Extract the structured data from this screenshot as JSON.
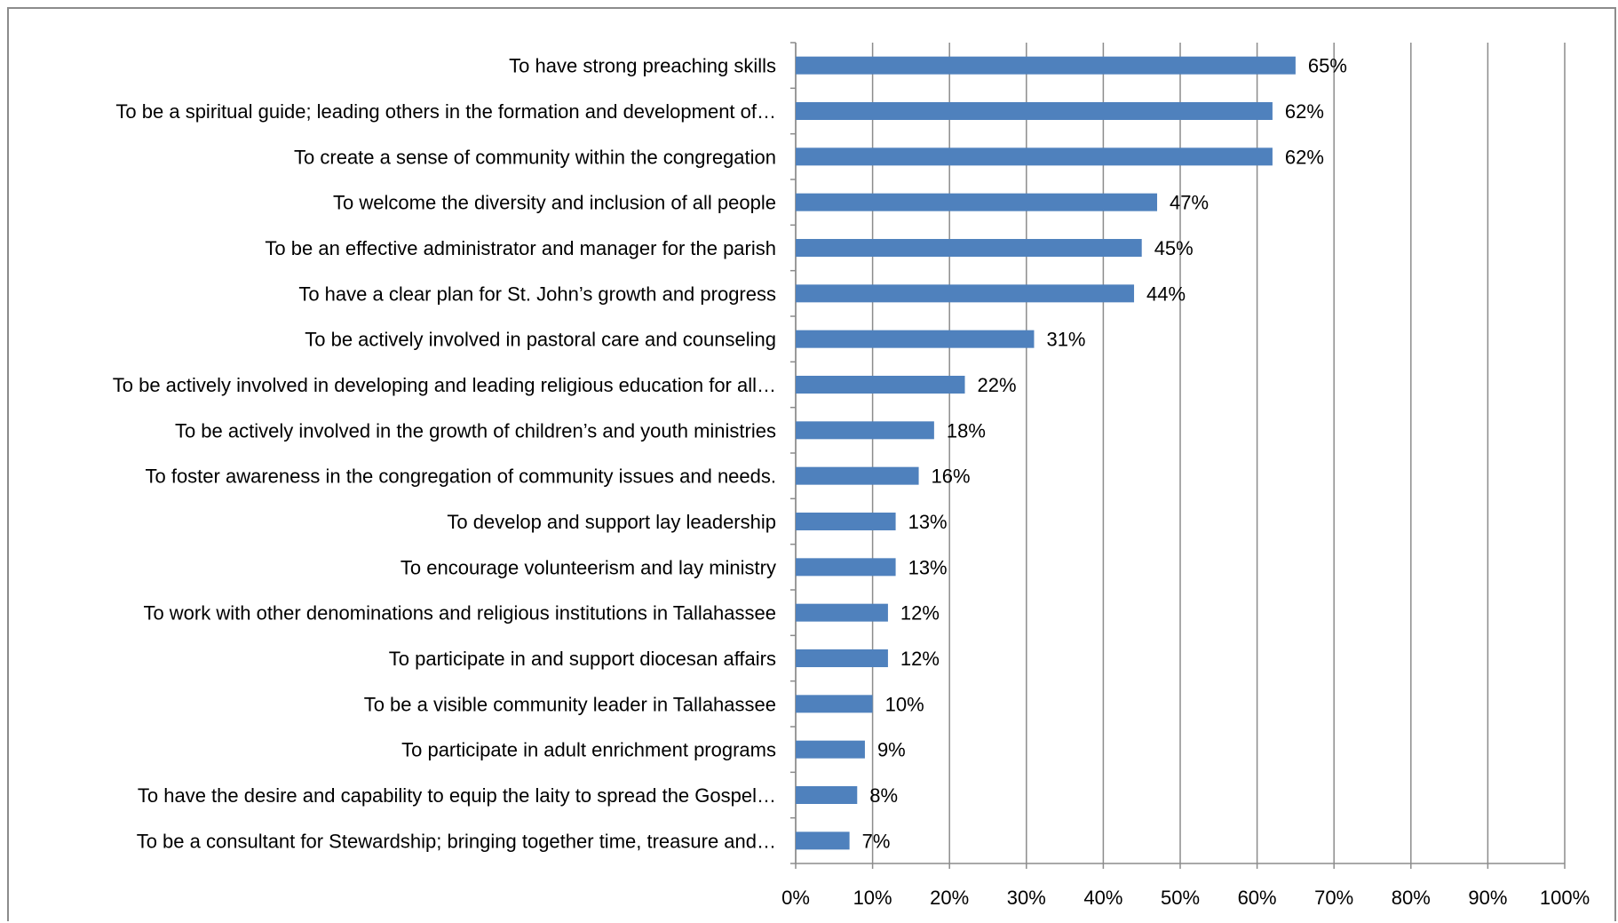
{
  "chart_data": {
    "type": "bar",
    "orientation": "horizontal",
    "categories": [
      "To have strong preaching skills",
      "To be a spiritual guide; leading others in the formation and development of…",
      "To create a sense of community within the congregation",
      "To welcome the diversity and inclusion of all people",
      "To be an effective administrator and manager for the parish",
      "To have a clear plan for St. John’s growth and progress",
      "To be actively involved in pastoral care and counseling",
      "To be actively involved in developing and leading religious education for all…",
      "To be actively involved in the growth of children’s and youth ministries",
      "To foster awareness in the congregation of community issues and needs.",
      "To develop and support lay leadership",
      "To encourage volunteerism and lay ministry",
      "To work with other denominations and religious institutions in Tallahassee",
      "To participate in and support diocesan affairs",
      "To be a visible community leader in Tallahassee",
      "To participate in adult enrichment programs",
      "To have the desire and capability to equip the laity to spread the Gospel…",
      "To be a consultant for Stewardship; bringing together time, treasure and…"
    ],
    "values": [
      65,
      62,
      62,
      47,
      45,
      44,
      31,
      22,
      18,
      16,
      13,
      13,
      12,
      12,
      10,
      9,
      8,
      7
    ],
    "data_labels": [
      "65%",
      "62%",
      "62%",
      "47%",
      "45%",
      "44%",
      "31%",
      "22%",
      "18%",
      "16%",
      "13%",
      "13%",
      "12%",
      "12%",
      "10%",
      "9%",
      "8%",
      "7%"
    ],
    "x_ticks": [
      "0%",
      "10%",
      "20%",
      "30%",
      "40%",
      "50%",
      "60%",
      "70%",
      "80%",
      "90%",
      "100%"
    ],
    "xlim": [
      0,
      100
    ],
    "title": "",
    "xlabel": "",
    "ylabel": "",
    "grid": true,
    "legend": "none",
    "colors": {
      "bar": "#4f81bd",
      "grid": "#8c8c8c",
      "axis": "#8c8c8c",
      "text": "#000000",
      "frame": "#8c8c8c"
    }
  }
}
